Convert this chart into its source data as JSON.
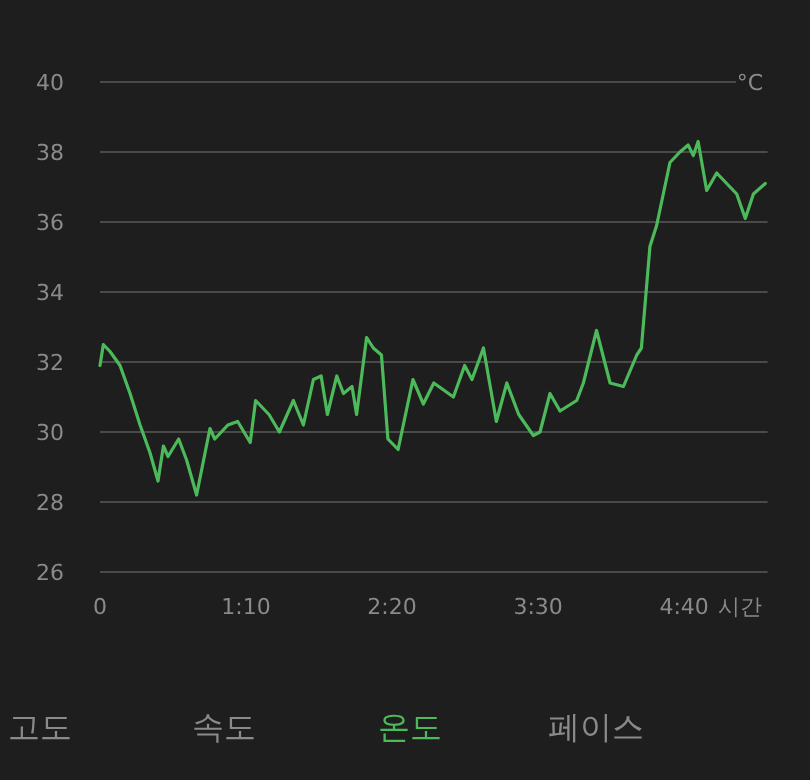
{
  "chart_data": {
    "type": "line",
    "xlabel": "시간",
    "ylabel": "°C",
    "x": [
      0,
      1.6,
      4.8,
      9.6,
      14.4,
      19.2,
      24,
      27.8,
      30.4,
      32.6,
      37.7,
      41.5,
      46.3,
      52.7,
      55,
      61.3,
      66,
      72,
      74.6,
      81,
      86,
      92.7,
      97.5,
      102.3,
      106,
      109,
      113.5,
      116.7,
      120.8,
      123,
      127.8,
      131,
      134.9,
      138,
      142.9,
      150,
      155,
      160,
      169.4,
      174.8,
      178.3,
      183.8,
      190,
      195,
      200.7,
      207.7,
      210.9,
      215.7,
      220.5,
      228.5,
      231.7,
      238,
      244.5,
      250.9,
      257.3,
      259.5,
      263.6,
      266.8,
      273.2,
      278,
      281.9,
      284.4,
      286.7,
      290.8,
      295.6,
      300.4,
      305.2,
      309.3,
      313.2,
      318.9
    ],
    "series": [
      {
        "color": "#4cba5a",
        "values": [
          31.9,
          32.5,
          32.3,
          31.9,
          31.1,
          30.2,
          29.4,
          28.6,
          29.6,
          29.3,
          29.8,
          29.2,
          28.2,
          30.1,
          29.8,
          30.2,
          30.3,
          29.7,
          30.9,
          30.5,
          30.0,
          30.9,
          30.2,
          31.5,
          31.6,
          30.5,
          31.6,
          31.1,
          31.3,
          30.5,
          32.7,
          32.4,
          32.2,
          29.8,
          29.5,
          31.5,
          30.8,
          31.4,
          31.0,
          31.9,
          31.5,
          32.4,
          30.3,
          31.4,
          30.5,
          29.9,
          30.0,
          31.1,
          30.6,
          30.9,
          31.4,
          32.9,
          31.4,
          31.3,
          32.2,
          32.4,
          35.3,
          35.9,
          37.7,
          38.0,
          38.2,
          37.9,
          38.3,
          36.9,
          37.4,
          37.1,
          36.8,
          36.1,
          36.8,
          37.1
        ]
      }
    ],
    "xlim": [
      0,
      320
    ],
    "ylim": [
      26,
      40
    ],
    "xticks": [
      0,
      {
        "value": 70,
        "label": "1:10"
      },
      {
        "value": 140,
        "label": "2:20"
      },
      {
        "value": 210,
        "label": "3:30"
      },
      {
        "value": 280,
        "label": "4:40"
      }
    ],
    "yticks": [
      26,
      28,
      30,
      32,
      34,
      36,
      38,
      40
    ],
    "grid": "y",
    "marker": "none",
    "line_style": "solid",
    "annotations": [
      "고도",
      "속도",
      "온도",
      "페이스"
    ]
  }
}
